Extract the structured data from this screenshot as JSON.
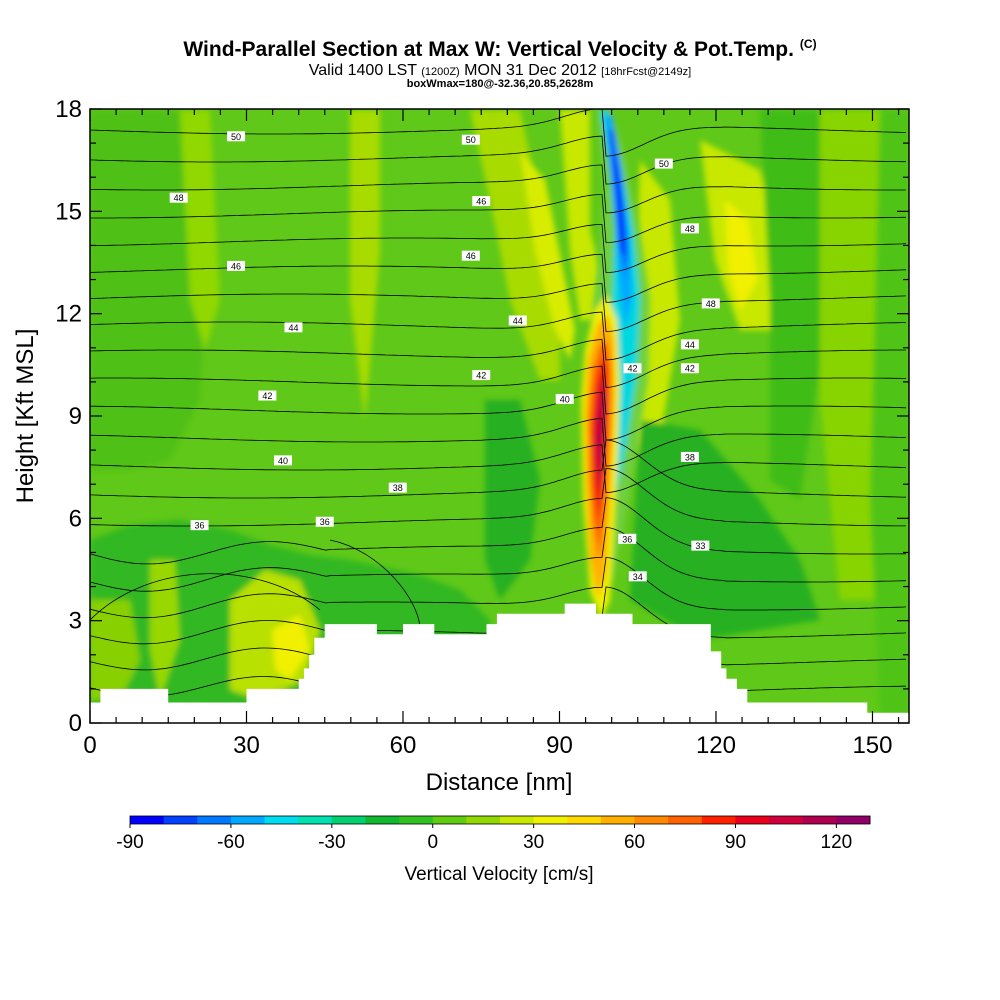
{
  "header": {
    "title": "Wind-Parallel Section at Max W: Vertical Velocity & Pot.Temp.",
    "copyright": "(C)",
    "valid_main": "Valid 1400 LST",
    "valid_utc": "(1200Z)",
    "valid_date": "MON 31 Dec 2012",
    "valid_fcst": "[18hrFcst@2149z]",
    "box_info": "boxWmax=180@-32.36,20.85,2628m"
  },
  "chart_data": {
    "type": "heatmap",
    "xlabel": "Distance [nm]",
    "ylabel": "Height [Kft MSL]",
    "xlim": [
      0,
      157
    ],
    "ylim": [
      0,
      18
    ],
    "x_ticks": [
      0,
      30,
      60,
      90,
      120,
      150
    ],
    "y_ticks": [
      0,
      3,
      6,
      9,
      12,
      15,
      18
    ],
    "colorbar": {
      "label": "Vertical Velocity [cm/s]",
      "levels": [
        -90,
        -80,
        -70,
        -60,
        -50,
        -40,
        -30,
        -20,
        -10,
        0,
        10,
        20,
        30,
        40,
        50,
        60,
        70,
        80,
        90,
        100,
        110,
        120,
        130
      ],
      "tick_labels": [
        -90,
        -60,
        -30,
        0,
        30,
        60,
        90,
        120
      ],
      "colors": [
        "#0000ff",
        "#0040ff",
        "#0078ff",
        "#00a8ff",
        "#00dcf0",
        "#00e0b0",
        "#00d070",
        "#10b830",
        "#30c020",
        "#60cc10",
        "#90d800",
        "#c8e800",
        "#f0f000",
        "#ffd800",
        "#ffb000",
        "#ff8800",
        "#ff6000",
        "#ff2000",
        "#e8001c",
        "#d0003c",
        "#b00050",
        "#900068"
      ]
    },
    "vertical_velocity_features": [
      {
        "name": "updraft core",
        "x": 98,
        "y": 8,
        "value": 120
      },
      {
        "name": "downdraft core",
        "x": 102,
        "y": 14,
        "value": -90
      }
    ],
    "theta_contour_labels": [
      {
        "text": "50",
        "x": 28,
        "y": 17.2
      },
      {
        "text": "50",
        "x": 73,
        "y": 17.1
      },
      {
        "text": "50",
        "x": 110,
        "y": 16.4
      },
      {
        "text": "48",
        "x": 17,
        "y": 15.4
      },
      {
        "text": "46",
        "x": 75,
        "y": 15.3
      },
      {
        "text": "48",
        "x": 115,
        "y": 14.5
      },
      {
        "text": "46",
        "x": 28,
        "y": 13.4
      },
      {
        "text": "46",
        "x": 73,
        "y": 13.7
      },
      {
        "text": "48",
        "x": 119,
        "y": 12.3
      },
      {
        "text": "44",
        "x": 39,
        "y": 11.6
      },
      {
        "text": "44",
        "x": 82,
        "y": 11.8
      },
      {
        "text": "44",
        "x": 115,
        "y": 11.1
      },
      {
        "text": "42",
        "x": 104,
        "y": 10.4
      },
      {
        "text": "42",
        "x": 115,
        "y": 10.4
      },
      {
        "text": "42",
        "x": 75,
        "y": 10.2
      },
      {
        "text": "42",
        "x": 34,
        "y": 9.6
      },
      {
        "text": "40",
        "x": 91,
        "y": 9.5
      },
      {
        "text": "40",
        "x": 37,
        "y": 7.7
      },
      {
        "text": "38",
        "x": 115,
        "y": 7.8
      },
      {
        "text": "38",
        "x": 59,
        "y": 6.9
      },
      {
        "text": "36",
        "x": 21,
        "y": 5.8
      },
      {
        "text": "36",
        "x": 45,
        "y": 5.9
      },
      {
        "text": "36",
        "x": 103,
        "y": 5.4
      },
      {
        "text": "33",
        "x": 117,
        "y": 5.2
      },
      {
        "text": "34",
        "x": 105,
        "y": 4.3
      }
    ],
    "terrain": [
      [
        0,
        0.6
      ],
      [
        2,
        0.6
      ],
      [
        2,
        1
      ],
      [
        15,
        1
      ],
      [
        15,
        0.6
      ],
      [
        30,
        0.6
      ],
      [
        30,
        1
      ],
      [
        40,
        1
      ],
      [
        40,
        1.3
      ],
      [
        41,
        1.3
      ],
      [
        41,
        1.6
      ],
      [
        42,
        1.6
      ],
      [
        42,
        2
      ],
      [
        43,
        2
      ],
      [
        43,
        2.5
      ],
      [
        45,
        2.5
      ],
      [
        45,
        2.9
      ],
      [
        55,
        2.9
      ],
      [
        55,
        2.6
      ],
      [
        60,
        2.6
      ],
      [
        60,
        2.9
      ],
      [
        66,
        2.9
      ],
      [
        66,
        2.6
      ],
      [
        76,
        2.6
      ],
      [
        76,
        2.9
      ],
      [
        78,
        2.9
      ],
      [
        78,
        3.2
      ],
      [
        91,
        3.2
      ],
      [
        91,
        3.5
      ],
      [
        97,
        3.5
      ],
      [
        97,
        3.2
      ],
      [
        104,
        3.2
      ],
      [
        104,
        2.9
      ],
      [
        119,
        2.9
      ],
      [
        119,
        2.1
      ],
      [
        121,
        2.1
      ],
      [
        121,
        1.6
      ],
      [
        122,
        1.6
      ],
      [
        122,
        1.3
      ],
      [
        124,
        1.3
      ],
      [
        124,
        1
      ],
      [
        126,
        1
      ],
      [
        126,
        0.6
      ],
      [
        149,
        0.6
      ],
      [
        149,
        0.3
      ],
      [
        157,
        0.3
      ]
    ]
  }
}
